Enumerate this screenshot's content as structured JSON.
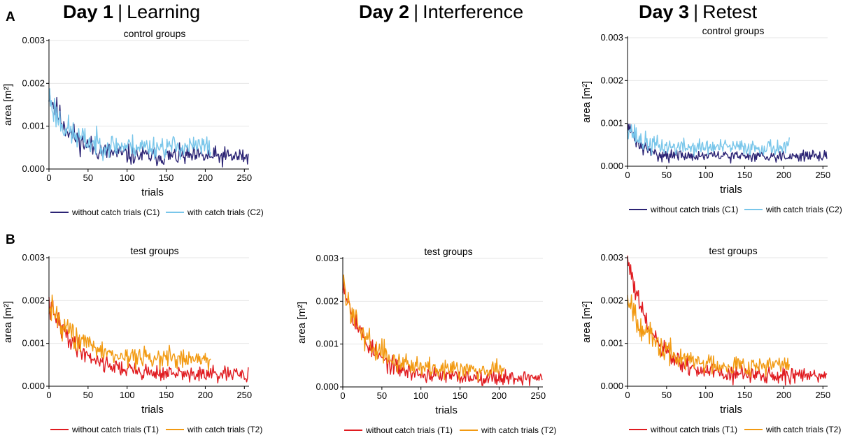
{
  "headers": {
    "day1": {
      "bold": "Day 1",
      "sep": "|",
      "rest": "Learning"
    },
    "day2": {
      "bold": "Day 2",
      "sep": "|",
      "rest": "Interference"
    },
    "day3": {
      "bold": "Day 3",
      "sep": "|",
      "rest": "Retest"
    }
  },
  "panels": {
    "a": "A",
    "b": "B"
  },
  "colors": {
    "C1": "#2b2374",
    "C2": "#79c6ea",
    "T1": "#e01b20",
    "T2": "#f29a12",
    "grid": "#e6e6e6"
  },
  "chart_data": [
    {
      "id": "day1-control",
      "type": "line",
      "title": "control groups",
      "xlabel": "trials",
      "ylabel": "area [m²]",
      "xlim": [
        0,
        256
      ],
      "ylim": [
        0,
        0.003
      ],
      "xticks": [
        0,
        50,
        100,
        150,
        200,
        250
      ],
      "xtick_labels": [
        "0",
        "50",
        "100",
        "150",
        "200",
        "250"
      ],
      "yticks": [
        0,
        0.001,
        0.002,
        0.003
      ],
      "ytick_labels": [
        "0.000",
        "0.001",
        "0.002",
        "0.003"
      ],
      "grid": true,
      "legend_position": "bottom",
      "series": [
        {
          "key": "C1",
          "name": "without catch trials (C1)",
          "n": 256,
          "start": 0.0018,
          "plateau": 0.00029,
          "tau": 28,
          "noise": 0.00011,
          "seed": 11
        },
        {
          "key": "C2",
          "name": "with catch trials (C2)",
          "n": 208,
          "start": 0.0017,
          "plateau": 0.00052,
          "tau": 22,
          "noise": 0.00013,
          "seed": 23
        }
      ]
    },
    {
      "id": "day3-control",
      "type": "line",
      "title": "control groups",
      "xlabel": "trials",
      "ylabel": "area [m²]",
      "xlim": [
        0,
        256
      ],
      "ylim": [
        0,
        0.003
      ],
      "xticks": [
        0,
        50,
        100,
        150,
        200,
        250
      ],
      "xtick_labels": [
        "0",
        "50",
        "100",
        "150",
        "200",
        "250"
      ],
      "yticks": [
        0,
        0.001,
        0.002,
        0.003
      ],
      "ytick_labels": [
        "0.000",
        "0.001",
        "0.002",
        "0.003"
      ],
      "grid": true,
      "legend_position": "bottom",
      "series": [
        {
          "key": "C1",
          "name": "without catch trials (C1)",
          "n": 256,
          "start": 0.001,
          "plateau": 0.00024,
          "tau": 14,
          "noise": 6e-05,
          "seed": 31
        },
        {
          "key": "C2",
          "name": "with catch trials (C2)",
          "n": 208,
          "start": 0.001,
          "plateau": 0.00044,
          "tau": 14,
          "noise": 9e-05,
          "seed": 37
        }
      ]
    },
    {
      "id": "day1-test",
      "type": "line",
      "title": "test groups",
      "xlabel": "trials",
      "ylabel": "area [m²]",
      "xlim": [
        0,
        256
      ],
      "ylim": [
        0,
        0.003
      ],
      "xticks": [
        0,
        50,
        100,
        150,
        200,
        250
      ],
      "xtick_labels": [
        "0",
        "50",
        "100",
        "150",
        "200",
        "250"
      ],
      "yticks": [
        0,
        0.001,
        0.002,
        0.003
      ],
      "ytick_labels": [
        "0.000",
        "0.001",
        "0.002",
        "0.003"
      ],
      "grid": true,
      "legend_position": "bottom",
      "series": [
        {
          "key": "T1",
          "name": "without catch trials (T1)",
          "n": 256,
          "start": 0.0019,
          "plateau": 0.00026,
          "tau": 40,
          "noise": 9e-05,
          "seed": 41
        },
        {
          "key": "T2",
          "name": "with catch trials (T2)",
          "n": 208,
          "start": 0.002,
          "plateau": 0.00062,
          "tau": 35,
          "noise": 0.00012,
          "seed": 43
        }
      ]
    },
    {
      "id": "day2-test",
      "type": "line",
      "title": "test groups",
      "xlabel": "trials",
      "ylabel": "area [m²]",
      "xlim": [
        0,
        256
      ],
      "ylim": [
        0,
        0.003
      ],
      "xticks": [
        0,
        50,
        100,
        150,
        200,
        250
      ],
      "xtick_labels": [
        "0",
        "50",
        "100",
        "150",
        "200",
        "250"
      ],
      "yticks": [
        0,
        0.001,
        0.002,
        0.003
      ],
      "ytick_labels": [
        "0.000",
        "0.001",
        "0.002",
        "0.003"
      ],
      "grid": true,
      "legend_position": "bottom",
      "series": [
        {
          "key": "T1",
          "name": "without catch trials (T1)",
          "n": 256,
          "start": 0.0025,
          "plateau": 0.00022,
          "tau": 30,
          "noise": 9e-05,
          "seed": 53
        },
        {
          "key": "T2",
          "name": "with catch trials (T2)",
          "n": 208,
          "start": 0.0024,
          "plateau": 0.00042,
          "tau": 30,
          "noise": 0.00011,
          "seed": 59
        }
      ]
    },
    {
      "id": "day3-test",
      "type": "line",
      "title": "test groups",
      "xlabel": "trials",
      "ylabel": "area [m²]",
      "xlim": [
        0,
        256
      ],
      "ylim": [
        0,
        0.003
      ],
      "xticks": [
        0,
        50,
        100,
        150,
        200,
        250
      ],
      "xtick_labels": [
        "0",
        "50",
        "100",
        "150",
        "200",
        "250"
      ],
      "yticks": [
        0,
        0.001,
        0.002,
        0.003
      ],
      "ytick_labels": [
        "0.000",
        "0.001",
        "0.002",
        "0.003"
      ],
      "grid": true,
      "legend_position": "bottom",
      "series": [
        {
          "key": "T1",
          "name": "without catch trials (T1)",
          "n": 256,
          "start": 0.003,
          "plateau": 0.00025,
          "tau": 30,
          "noise": 0.0001,
          "seed": 61
        },
        {
          "key": "T2",
          "name": "with catch trials (T2)",
          "n": 208,
          "start": 0.0022,
          "plateau": 0.00048,
          "tau": 30,
          "noise": 0.00012,
          "seed": 67
        }
      ]
    }
  ]
}
